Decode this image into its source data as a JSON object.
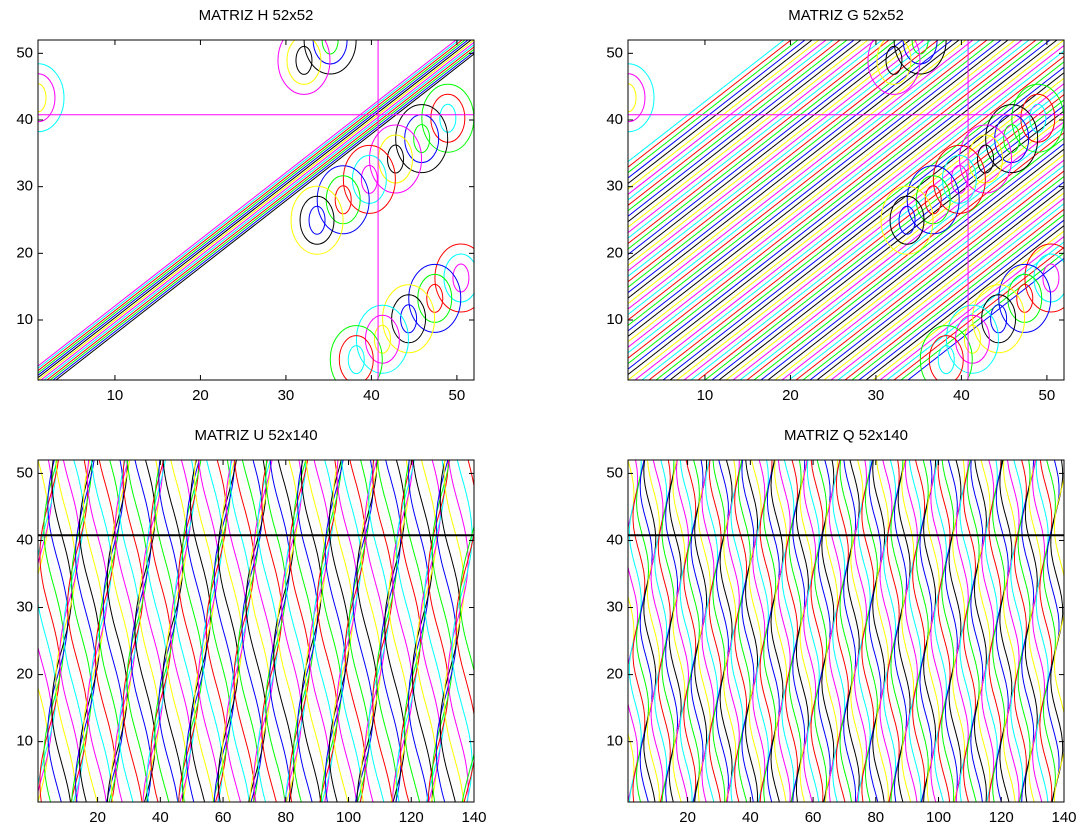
{
  "chart_data": [
    {
      "type": "contour",
      "title": "MATRIZ  H  52x52",
      "xlim": [
        1,
        52
      ],
      "ylim": [
        1,
        52
      ],
      "xticks": [
        10,
        20,
        30,
        40,
        50
      ],
      "yticks": [
        10,
        20,
        30,
        40,
        50
      ],
      "line_colors": [
        "#ffff00",
        "#ff00ff",
        "#00ffff",
        "#ff0000",
        "#00ff00",
        "#0000ff",
        "#000000"
      ]
    },
    {
      "type": "contour",
      "title": "MATRIZ  G  52x52",
      "xlim": [
        1,
        52
      ],
      "ylim": [
        1,
        52
      ],
      "xticks": [
        10,
        20,
        30,
        40,
        50
      ],
      "yticks": [
        10,
        20,
        30,
        40,
        50
      ],
      "line_colors": [
        "#ffff00",
        "#ff00ff",
        "#00ffff",
        "#ff0000",
        "#00ff00",
        "#0000ff",
        "#000000"
      ]
    },
    {
      "type": "contour",
      "title": "MATRIZ  U  52x140",
      "xlim": [
        1,
        140
      ],
      "ylim": [
        1,
        52
      ],
      "xticks": [
        20,
        40,
        60,
        80,
        100,
        120,
        140
      ],
      "yticks": [
        10,
        20,
        30,
        40,
        50
      ],
      "line_colors": [
        "#ffff00",
        "#ff00ff",
        "#00ffff",
        "#ff0000",
        "#00ff00",
        "#0000ff",
        "#000000"
      ]
    },
    {
      "type": "contour",
      "title": "MATRIZ  Q  52x140",
      "xlim": [
        1,
        140
      ],
      "ylim": [
        1,
        52
      ],
      "xticks": [
        20,
        40,
        60,
        80,
        100,
        120,
        140
      ],
      "yticks": [
        10,
        20,
        30,
        40,
        50
      ],
      "line_colors": [
        "#ffff00",
        "#ff00ff",
        "#00ffff",
        "#ff0000",
        "#00ff00",
        "#0000ff",
        "#000000"
      ]
    }
  ]
}
